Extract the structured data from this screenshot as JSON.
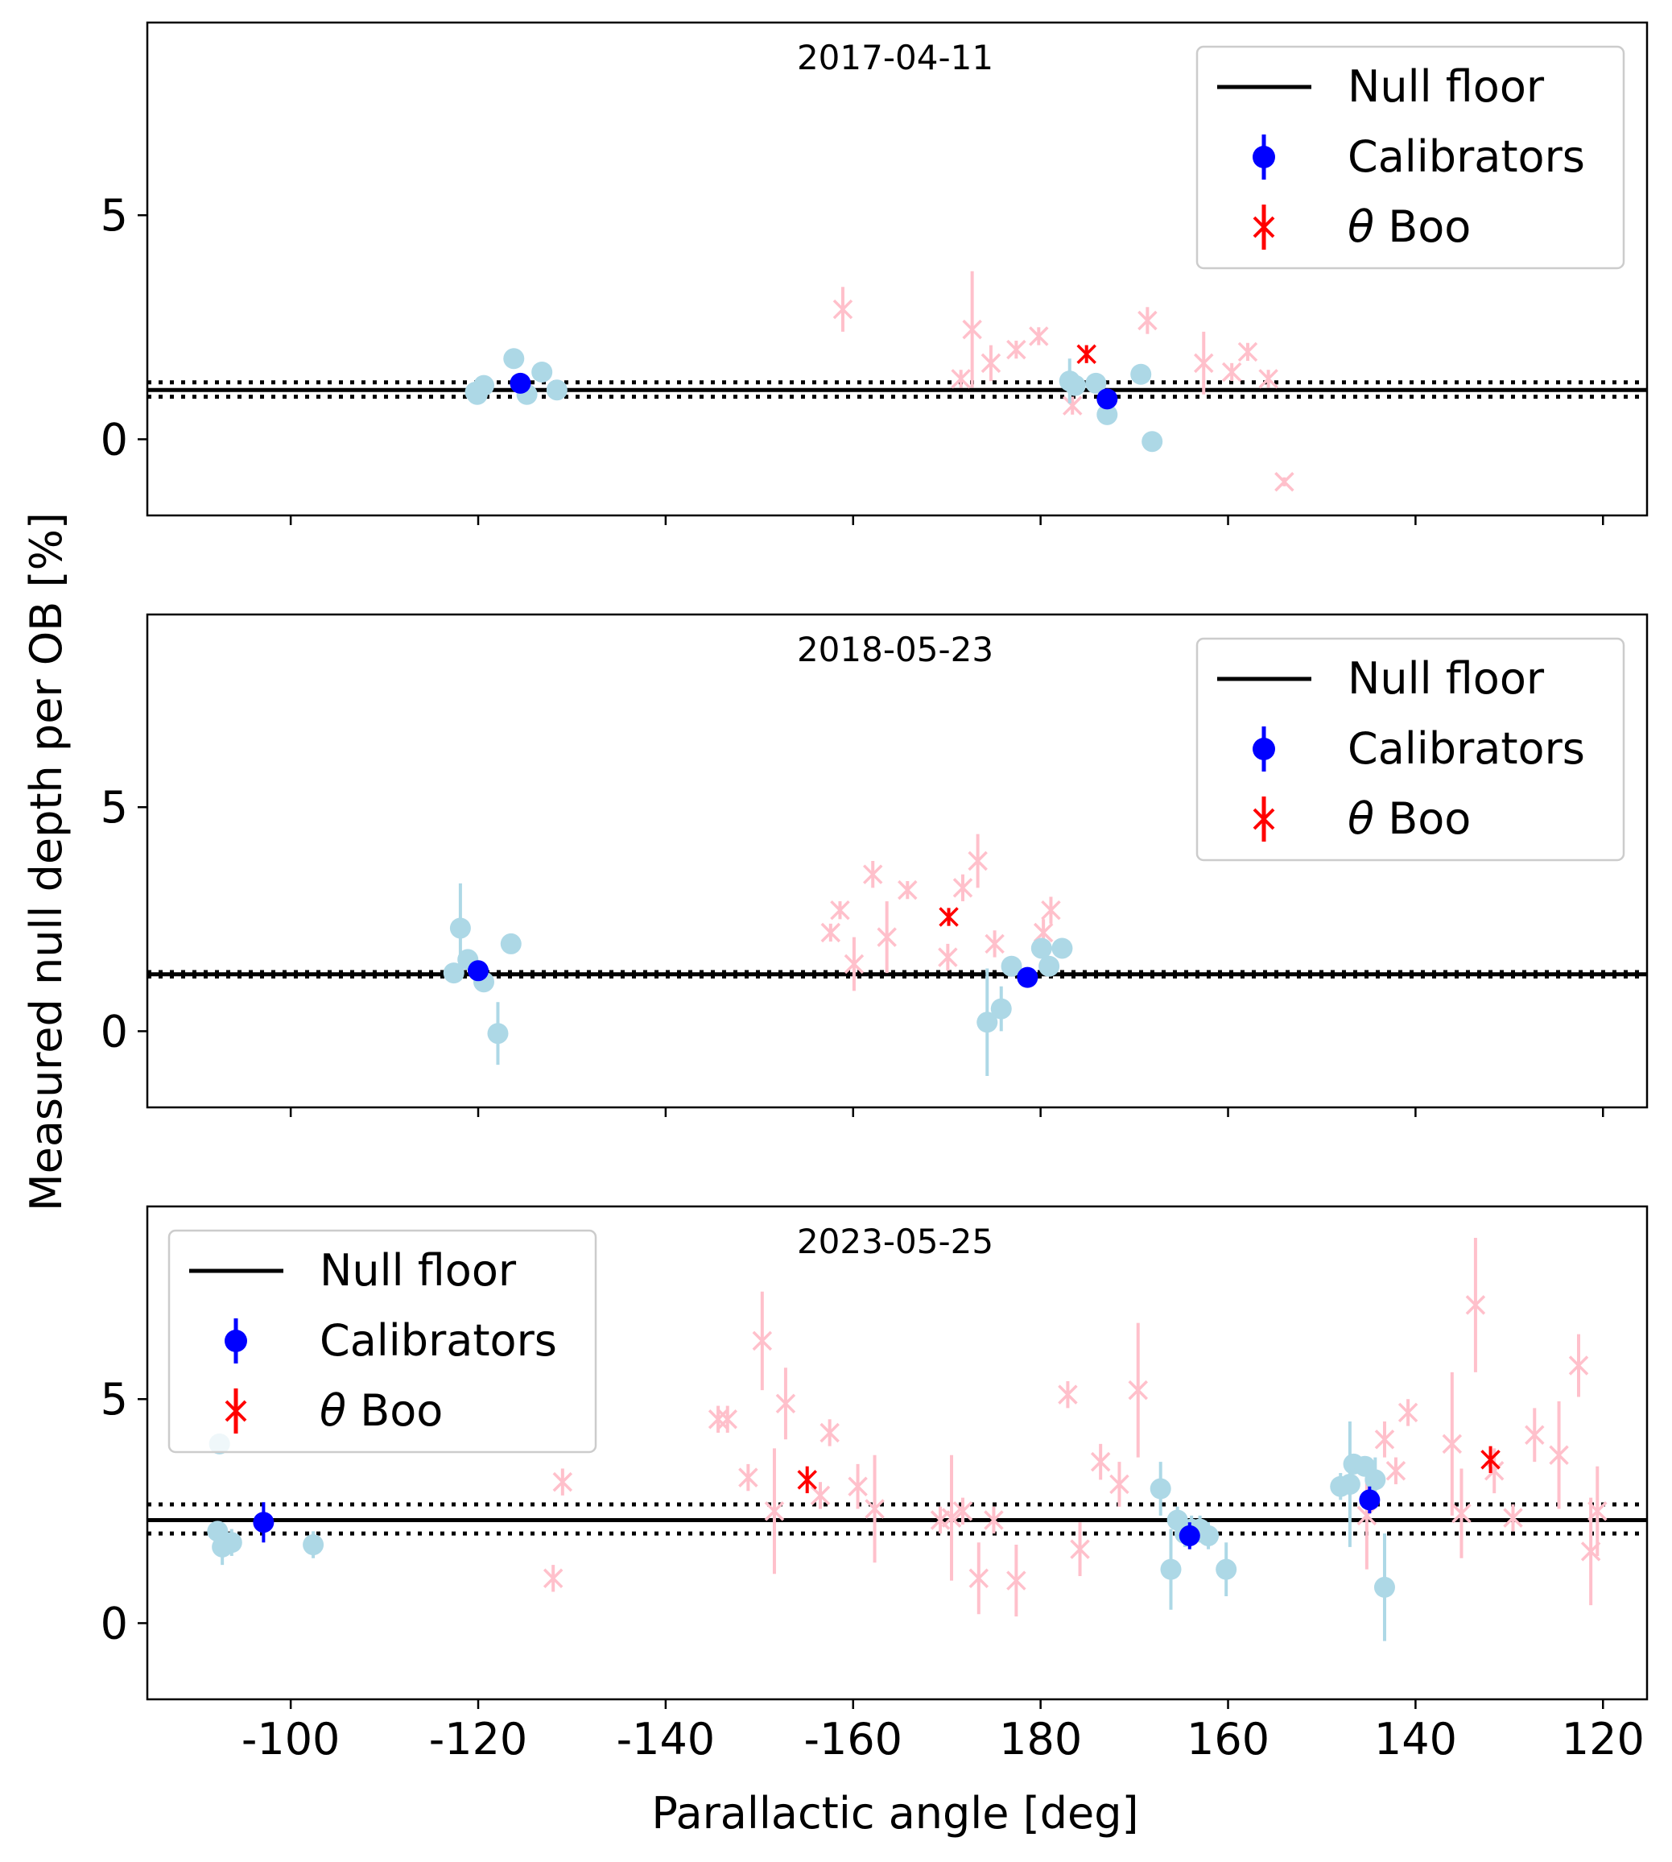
{
  "ylabel": "Measured null depth per OB [%]",
  "xlabel": "Parallactic angle [deg]",
  "x_tick_labels": [
    "-100",
    "-120",
    "-140",
    "-160",
    "180",
    "160",
    "140",
    "120"
  ],
  "x_tick_values": [
    -100,
    -120,
    -140,
    -160,
    180,
    160,
    140,
    120
  ],
  "y_tick_labels": [
    "0",
    "5"
  ],
  "legend_labels": {
    "floor": "Null floor",
    "calibrators": "Calibrators",
    "target_greek": "θ",
    "target_name": " Boo"
  },
  "colors": {
    "floor": "#000000",
    "calibrators": "#0000ff",
    "calibrators_light": "#add8e6",
    "target": "#ff0000",
    "target_light": "#ffc0cb"
  },
  "chart_data": [
    {
      "type": "scatter",
      "title": "2017-04-11",
      "ylim": [
        -1.7,
        9.3
      ],
      "legend_location": "top-right",
      "null_floor": {
        "value": 1.1,
        "band": [
          0.95,
          1.27
        ]
      },
      "series": [
        {
          "name": "Calibrators",
          "role": "cal_light",
          "points": [
            {
              "x": -119.7,
              "y": 1.05,
              "err": 0.1
            },
            {
              "x": -119.9,
              "y": 1.0,
              "err": 0.1
            },
            {
              "x": -120.6,
              "y": 1.2,
              "err": 0.1
            },
            {
              "x": -123.8,
              "y": 1.8,
              "err": 0.1
            },
            {
              "x": -125.2,
              "y": 1.0,
              "err": 0.1
            },
            {
              "x": -126.8,
              "y": 1.5,
              "err": 0.1
            },
            {
              "x": -128.4,
              "y": 1.1,
              "err": 0.1
            },
            {
              "x": 176.9,
              "y": 1.3,
              "err": 0.5
            },
            {
              "x": 176.3,
              "y": 1.2,
              "err": 0.1
            },
            {
              "x": 174.1,
              "y": 1.25,
              "err": 0.1
            },
            {
              "x": 172.9,
              "y": 0.55,
              "err": 0.1
            },
            {
              "x": 169.3,
              "y": 1.45,
              "err": 0.1
            },
            {
              "x": 168.1,
              "y": -0.05,
              "err": 0.1
            }
          ]
        },
        {
          "name": "Calibrators",
          "role": "cal_dark",
          "points": [
            {
              "x": -124.5,
              "y": 1.25,
              "err": 0.15
            },
            {
              "x": 172.9,
              "y": 0.9,
              "err": 0.15
            }
          ]
        },
        {
          "name": "θ Boo",
          "role": "target_light",
          "points": [
            {
              "x": -158.9,
              "y": 2.9,
              "err": 0.5
            },
            {
              "x": -171.5,
              "y": 1.35,
              "err": 0.2
            },
            {
              "x": -172.7,
              "y": 2.45,
              "err": 1.3
            },
            {
              "x": -174.7,
              "y": 1.7,
              "err": 0.4
            },
            {
              "x": -177.4,
              "y": 2.0,
              "err": 0.2
            },
            {
              "x": -179.8,
              "y": 2.3,
              "err": 0.2
            },
            {
              "x": 176.6,
              "y": 0.75,
              "err": 0.2
            },
            {
              "x": 168.6,
              "y": 2.65,
              "err": 0.3
            },
            {
              "x": 162.6,
              "y": 1.7,
              "err": 0.7
            },
            {
              "x": 159.6,
              "y": 1.5,
              "err": 0.2
            },
            {
              "x": 157.9,
              "y": 1.95,
              "err": 0.2
            },
            {
              "x": 155.7,
              "y": 1.35,
              "err": 0.2
            },
            {
              "x": 154.0,
              "y": -0.95,
              "err": 0.1
            }
          ]
        },
        {
          "name": "θ Boo",
          "role": "target_dark",
          "points": [
            {
              "x": 175.1,
              "y": 1.9,
              "err": 0.2
            }
          ]
        }
      ]
    },
    {
      "type": "scatter",
      "title": "2018-05-23",
      "ylim": [
        -1.7,
        9.3
      ],
      "legend_location": "top-right",
      "null_floor": {
        "value": 1.27,
        "band": [
          1.22,
          1.32
        ]
      },
      "series": [
        {
          "name": "Calibrators",
          "role": "cal_light",
          "points": [
            {
              "x": -117.4,
              "y": 1.3,
              "err": 0.1
            },
            {
              "x": -118.1,
              "y": 2.3,
              "err": 1.0
            },
            {
              "x": -118.9,
              "y": 1.6,
              "err": 0.1
            },
            {
              "x": -120.6,
              "y": 1.1,
              "err": 0.1
            },
            {
              "x": -122.1,
              "y": -0.05,
              "err": 0.7
            },
            {
              "x": -123.5,
              "y": 1.95,
              "err": 0.1
            },
            {
              "x": -174.3,
              "y": 0.2,
              "err": 1.2
            },
            {
              "x": -175.8,
              "y": 0.5,
              "err": 0.5
            },
            {
              "x": -176.9,
              "y": 1.45,
              "err": 0.1
            },
            {
              "x": 179.9,
              "y": 1.85,
              "err": 0.1
            },
            {
              "x": 179.1,
              "y": 1.45,
              "err": 0.1
            },
            {
              "x": 177.7,
              "y": 1.85,
              "err": 0.1
            }
          ]
        },
        {
          "name": "Calibrators",
          "role": "cal_dark",
          "points": [
            {
              "x": -120.0,
              "y": 1.35,
              "err": 0.15
            },
            {
              "x": -178.6,
              "y": 1.2,
              "err": 0.2
            }
          ]
        },
        {
          "name": "θ Boo",
          "role": "target_light",
          "points": [
            {
              "x": -157.6,
              "y": 2.2,
              "err": 0.2
            },
            {
              "x": -158.6,
              "y": 2.7,
              "err": 0.2
            },
            {
              "x": -160.1,
              "y": 1.5,
              "err": 0.6
            },
            {
              "x": -162.1,
              "y": 3.5,
              "err": 0.3
            },
            {
              "x": -163.6,
              "y": 2.1,
              "err": 0.8
            },
            {
              "x": -165.8,
              "y": 3.15,
              "err": 0.2
            },
            {
              "x": -170.1,
              "y": 1.65,
              "err": 0.3
            },
            {
              "x": -171.7,
              "y": 3.2,
              "err": 0.3
            },
            {
              "x": -173.3,
              "y": 3.8,
              "err": 0.6
            },
            {
              "x": -175.1,
              "y": 1.95,
              "err": 0.3
            },
            {
              "x": 179.7,
              "y": 2.2,
              "err": 0.3
            },
            {
              "x": 178.9,
              "y": 2.7,
              "err": 0.3
            }
          ]
        },
        {
          "name": "θ Boo",
          "role": "target_dark",
          "points": [
            {
              "x": -170.2,
              "y": 2.55,
              "err": 0.2
            }
          ]
        }
      ]
    },
    {
      "type": "scatter",
      "title": "2023-05-25",
      "ylim": [
        -1.7,
        9.3
      ],
      "legend_location": "top-left",
      "null_floor": {
        "value": 2.3,
        "band": [
          2.0,
          2.65
        ]
      },
      "series": [
        {
          "name": "Calibrators",
          "role": "cal_light",
          "points": [
            {
              "x": -92.4,
              "y": 4.0,
              "err": 0.1
            },
            {
              "x": -92.2,
              "y": 2.05,
              "err": 0.1
            },
            {
              "x": -92.7,
              "y": 1.7,
              "err": 0.4
            },
            {
              "x": -93.1,
              "y": 1.8,
              "err": 0.3
            },
            {
              "x": -93.7,
              "y": 1.8,
              "err": 0.3
            },
            {
              "x": -102.4,
              "y": 1.75,
              "err": 0.3
            },
            {
              "x": 167.2,
              "y": 3.0,
              "err": 0.6
            },
            {
              "x": 166.1,
              "y": 1.2,
              "err": 0.9
            },
            {
              "x": 165.4,
              "y": 2.3,
              "err": 0.3
            },
            {
              "x": 164.6,
              "y": 2.0,
              "err": 0.3
            },
            {
              "x": 163.9,
              "y": 2.1,
              "err": 0.3
            },
            {
              "x": 163.0,
              "y": 2.1,
              "err": 0.3
            },
            {
              "x": 162.1,
              "y": 1.95,
              "err": 0.3
            },
            {
              "x": 160.2,
              "y": 1.2,
              "err": 0.6
            },
            {
              "x": 148.0,
              "y": 3.05,
              "err": 0.3
            },
            {
              "x": 147.0,
              "y": 3.1,
              "err": 1.4
            },
            {
              "x": 146.6,
              "y": 3.55,
              "err": 0.2
            },
            {
              "x": 145.4,
              "y": 3.5,
              "err": 0.2
            },
            {
              "x": 144.3,
              "y": 3.2,
              "err": 0.5
            },
            {
              "x": 143.3,
              "y": 0.8,
              "err": 1.2
            }
          ]
        },
        {
          "name": "Calibrators",
          "role": "cal_dark",
          "points": [
            {
              "x": -97.1,
              "y": 2.25,
              "err": 0.45
            },
            {
              "x": 164.1,
              "y": 1.95,
              "err": 0.3
            },
            {
              "x": 144.9,
              "y": 2.75,
              "err": 0.3
            }
          ]
        },
        {
          "name": "θ Boo",
          "role": "target_light",
          "points": [
            {
              "x": -128.0,
              "y": 1.0,
              "err": 0.3
            },
            {
              "x": -129.0,
              "y": 3.15,
              "err": 0.3
            },
            {
              "x": -145.6,
              "y": 4.55,
              "err": 0.3
            },
            {
              "x": -146.6,
              "y": 4.55,
              "err": 0.3
            },
            {
              "x": -148.8,
              "y": 3.25,
              "err": 0.3
            },
            {
              "x": -150.3,
              "y": 6.3,
              "err": 1.1
            },
            {
              "x": -151.6,
              "y": 2.5,
              "err": 1.4
            },
            {
              "x": -152.8,
              "y": 4.9,
              "err": 0.8
            },
            {
              "x": -156.5,
              "y": 2.85,
              "err": 0.3
            },
            {
              "x": -157.5,
              "y": 4.25,
              "err": 0.3
            },
            {
              "x": -160.5,
              "y": 3.05,
              "err": 0.5
            },
            {
              "x": -162.3,
              "y": 2.55,
              "err": 1.2
            },
            {
              "x": -169.3,
              "y": 2.3,
              "err": 0.3
            },
            {
              "x": -170.5,
              "y": 2.35,
              "err": 1.4
            },
            {
              "x": -171.7,
              "y": 2.5,
              "err": 0.3
            },
            {
              "x": -173.4,
              "y": 1.0,
              "err": 0.8
            },
            {
              "x": -175.0,
              "y": 2.3,
              "err": 0.3
            },
            {
              "x": -177.4,
              "y": 0.95,
              "err": 0.8
            },
            {
              "x": 177.1,
              "y": 5.1,
              "err": 0.3
            },
            {
              "x": 175.8,
              "y": 1.65,
              "err": 0.6
            },
            {
              "x": 173.6,
              "y": 3.6,
              "err": 0.4
            },
            {
              "x": 171.6,
              "y": 3.1,
              "err": 0.5
            },
            {
              "x": 169.6,
              "y": 5.2,
              "err": 1.5
            },
            {
              "x": 145.2,
              "y": 2.4,
              "err": 1.2
            },
            {
              "x": 143.3,
              "y": 4.1,
              "err": 0.4
            },
            {
              "x": 142.1,
              "y": 3.4,
              "err": 0.3
            },
            {
              "x": 140.8,
              "y": 4.7,
              "err": 0.3
            },
            {
              "x": 136.1,
              "y": 4.0,
              "err": 1.6
            },
            {
              "x": 135.1,
              "y": 2.45,
              "err": 1.0
            },
            {
              "x": 133.6,
              "y": 7.1,
              "err": 1.5
            },
            {
              "x": 131.6,
              "y": 3.4,
              "err": 0.5
            },
            {
              "x": 129.6,
              "y": 2.35,
              "err": 0.3
            },
            {
              "x": 127.3,
              "y": 4.2,
              "err": 0.6
            },
            {
              "x": 124.7,
              "y": 3.75,
              "err": 1.2
            },
            {
              "x": 122.6,
              "y": 5.75,
              "err": 0.7
            },
            {
              "x": 121.3,
              "y": 1.6,
              "err": 1.2
            },
            {
              "x": 120.6,
              "y": 2.5,
              "err": 1.0
            }
          ]
        },
        {
          "name": "θ Boo",
          "role": "target_dark",
          "points": [
            {
              "x": -155.1,
              "y": 3.2,
              "err": 0.3
            },
            {
              "x": 132.0,
              "y": 3.65,
              "err": 0.3
            }
          ]
        }
      ]
    }
  ]
}
